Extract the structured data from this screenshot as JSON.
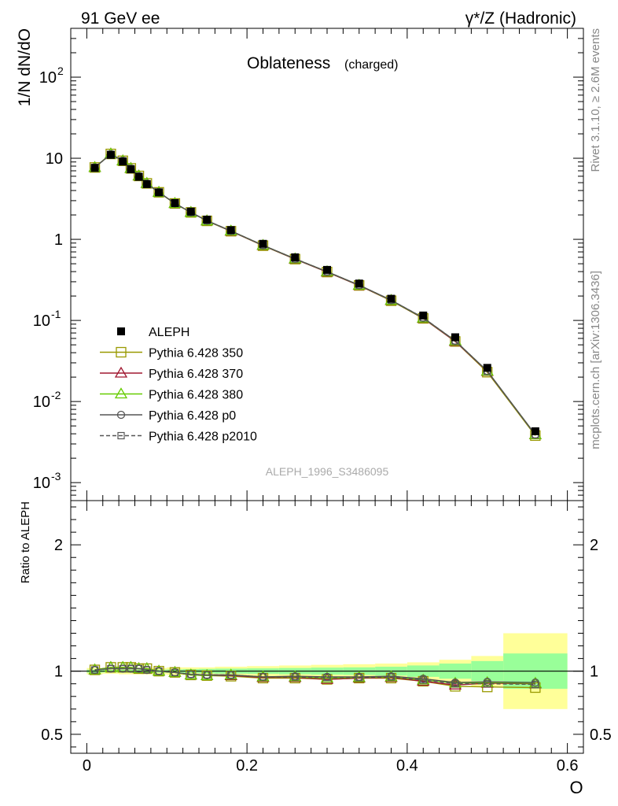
{
  "header": {
    "left": "91 GeV ee",
    "right": "γ*/Z (Hadronic)"
  },
  "side_labels": {
    "rivet": "Rivet 3.1.10, ≥ 2.6M events",
    "mcplots": "mcplots.cern.ch [arXiv:1306.3436]"
  },
  "chart_data": [
    {
      "type": "line",
      "title": "Oblateness",
      "subtitle": "(charged)",
      "ylabel": "1/N dN/dO",
      "xlabel": "",
      "yscale": "log",
      "ylim": [
        0.0006,
        400
      ],
      "xlim": [
        -0.02,
        0.62
      ],
      "y_ticks": [
        {
          "v": 0.001,
          "base": "10",
          "exp": "-3"
        },
        {
          "v": 0.01,
          "base": "10",
          "exp": "-2"
        },
        {
          "v": 0.1,
          "base": "10",
          "exp": "-1"
        },
        {
          "v": 1,
          "base": "1",
          "exp": ""
        },
        {
          "v": 10,
          "base": "10",
          "exp": ""
        },
        {
          "v": 100,
          "base": "10",
          "exp": "2"
        }
      ],
      "watermark": "ALEPH_1996_S3486095",
      "legend_position": "left-middle",
      "x": [
        0.01,
        0.03,
        0.045,
        0.055,
        0.065,
        0.075,
        0.09,
        0.11,
        0.13,
        0.15,
        0.18,
        0.22,
        0.26,
        0.3,
        0.34,
        0.38,
        0.42,
        0.46,
        0.5,
        0.56
      ],
      "data": {
        "name": "ALEPH",
        "values": [
          7.6,
          11.0,
          9.1,
          7.3,
          5.9,
          4.8,
          3.8,
          2.8,
          2.2,
          1.75,
          1.3,
          0.88,
          0.6,
          0.42,
          0.285,
          0.185,
          0.115,
          0.062,
          0.026,
          0.0043
        ]
      },
      "series": [
        {
          "name": "Pythia 6.428 350",
          "color": "#999900",
          "marker": "square-open",
          "dash": "solid",
          "values": [
            7.7,
            11.3,
            9.3,
            7.5,
            6.05,
            4.9,
            3.8,
            2.77,
            2.15,
            1.69,
            1.26,
            0.835,
            0.57,
            0.395,
            0.27,
            0.175,
            0.106,
            0.055,
            0.023,
            0.0038
          ]
        },
        {
          "name": "Pythia 6.428 370",
          "color": "#a01830",
          "marker": "triangle-open",
          "dash": "solid",
          "values": [
            7.7,
            11.3,
            9.3,
            7.5,
            6.05,
            4.9,
            3.8,
            2.77,
            2.15,
            1.69,
            1.26,
            0.84,
            0.57,
            0.395,
            0.27,
            0.176,
            0.106,
            0.055,
            0.0235,
            0.0039
          ]
        },
        {
          "name": "Pythia 6.428 380",
          "color": "#66cc00",
          "marker": "triangle-open",
          "dash": "solid",
          "values": [
            7.7,
            11.3,
            9.3,
            7.5,
            6.05,
            4.9,
            3.8,
            2.77,
            2.15,
            1.69,
            1.27,
            0.845,
            0.575,
            0.4,
            0.272,
            0.177,
            0.107,
            0.056,
            0.0237,
            0.0039
          ]
        },
        {
          "name": "Pythia 6.428 p0",
          "color": "#555555",
          "marker": "circle-open",
          "dash": "solid",
          "values": [
            7.7,
            11.2,
            9.3,
            7.45,
            6.0,
            4.85,
            3.8,
            2.78,
            2.15,
            1.7,
            1.27,
            0.845,
            0.575,
            0.4,
            0.272,
            0.178,
            0.108,
            0.056,
            0.0238,
            0.0039
          ]
        },
        {
          "name": "Pythia 6.428 p2010",
          "color": "#555555",
          "marker": "square-open-small",
          "dash": "dashed",
          "values": [
            7.7,
            11.2,
            9.3,
            7.45,
            6.0,
            4.85,
            3.8,
            2.78,
            2.15,
            1.7,
            1.27,
            0.845,
            0.575,
            0.4,
            0.272,
            0.178,
            0.108,
            0.056,
            0.0237,
            0.0039
          ]
        }
      ]
    },
    {
      "type": "line",
      "ylabel": "Ratio to ALEPH",
      "xlabel": "O",
      "ylim": [
        0.35,
        2.35
      ],
      "xlim": [
        -0.02,
        0.62
      ],
      "y_ticks": [
        0.5,
        1,
        2
      ],
      "x_ticks": [
        0,
        0.2,
        0.4,
        0.6
      ],
      "x_tick_labels": [
        "0",
        "0.2",
        "0.4",
        "0.6"
      ],
      "y_tick_labels": [
        "0.5",
        "1",
        "2"
      ],
      "bin_edges": [
        0.0,
        0.02,
        0.04,
        0.05,
        0.06,
        0.07,
        0.08,
        0.1,
        0.12,
        0.14,
        0.16,
        0.2,
        0.24,
        0.28,
        0.32,
        0.36,
        0.4,
        0.44,
        0.48,
        0.52,
        0.6
      ],
      "band_total": [
        0.025,
        0.02,
        0.025,
        0.025,
        0.025,
        0.025,
        0.025,
        0.03,
        0.03,
        0.03,
        0.035,
        0.04,
        0.045,
        0.05,
        0.055,
        0.06,
        0.07,
        0.09,
        0.12,
        0.3
      ],
      "band_stat": [
        0.012,
        0.01,
        0.012,
        0.012,
        0.012,
        0.012,
        0.012,
        0.014,
        0.016,
        0.018,
        0.02,
        0.022,
        0.025,
        0.028,
        0.03,
        0.035,
        0.045,
        0.06,
        0.08,
        0.14
      ],
      "series_ratio": [
        {
          "name": "Pythia 6.428 350",
          "values": [
            1.01,
            1.03,
            1.03,
            1.03,
            1.02,
            1.02,
            1.0,
            0.99,
            0.97,
            0.965,
            0.96,
            0.945,
            0.945,
            0.935,
            0.945,
            0.945,
            0.92,
            0.88,
            0.875,
            0.87
          ]
        },
        {
          "name": "Pythia 6.428 370",
          "values": [
            1.01,
            1.03,
            1.03,
            1.03,
            1.02,
            1.02,
            1.0,
            0.99,
            0.97,
            0.965,
            0.965,
            0.95,
            0.95,
            0.935,
            0.945,
            0.95,
            0.92,
            0.89,
            0.905,
            0.9
          ]
        },
        {
          "name": "Pythia 6.428 380",
          "values": [
            1.01,
            1.03,
            1.03,
            1.03,
            1.02,
            1.02,
            1.0,
            0.99,
            0.97,
            0.965,
            0.97,
            0.955,
            0.955,
            0.945,
            0.95,
            0.955,
            0.93,
            0.905,
            0.91,
            0.905
          ]
        },
        {
          "name": "Pythia 6.428 p0",
          "values": [
            1.01,
            1.02,
            1.02,
            1.02,
            1.02,
            1.01,
            1.0,
            0.99,
            0.975,
            0.97,
            0.97,
            0.955,
            0.96,
            0.955,
            0.955,
            0.96,
            0.94,
            0.91,
            0.915,
            0.91
          ]
        },
        {
          "name": "Pythia 6.428 p2010",
          "values": [
            1.01,
            1.02,
            1.02,
            1.02,
            1.02,
            1.01,
            1.0,
            0.99,
            0.975,
            0.97,
            0.97,
            0.955,
            0.955,
            0.95,
            0.95,
            0.955,
            0.93,
            0.9,
            0.9,
            0.895
          ]
        }
      ]
    }
  ]
}
